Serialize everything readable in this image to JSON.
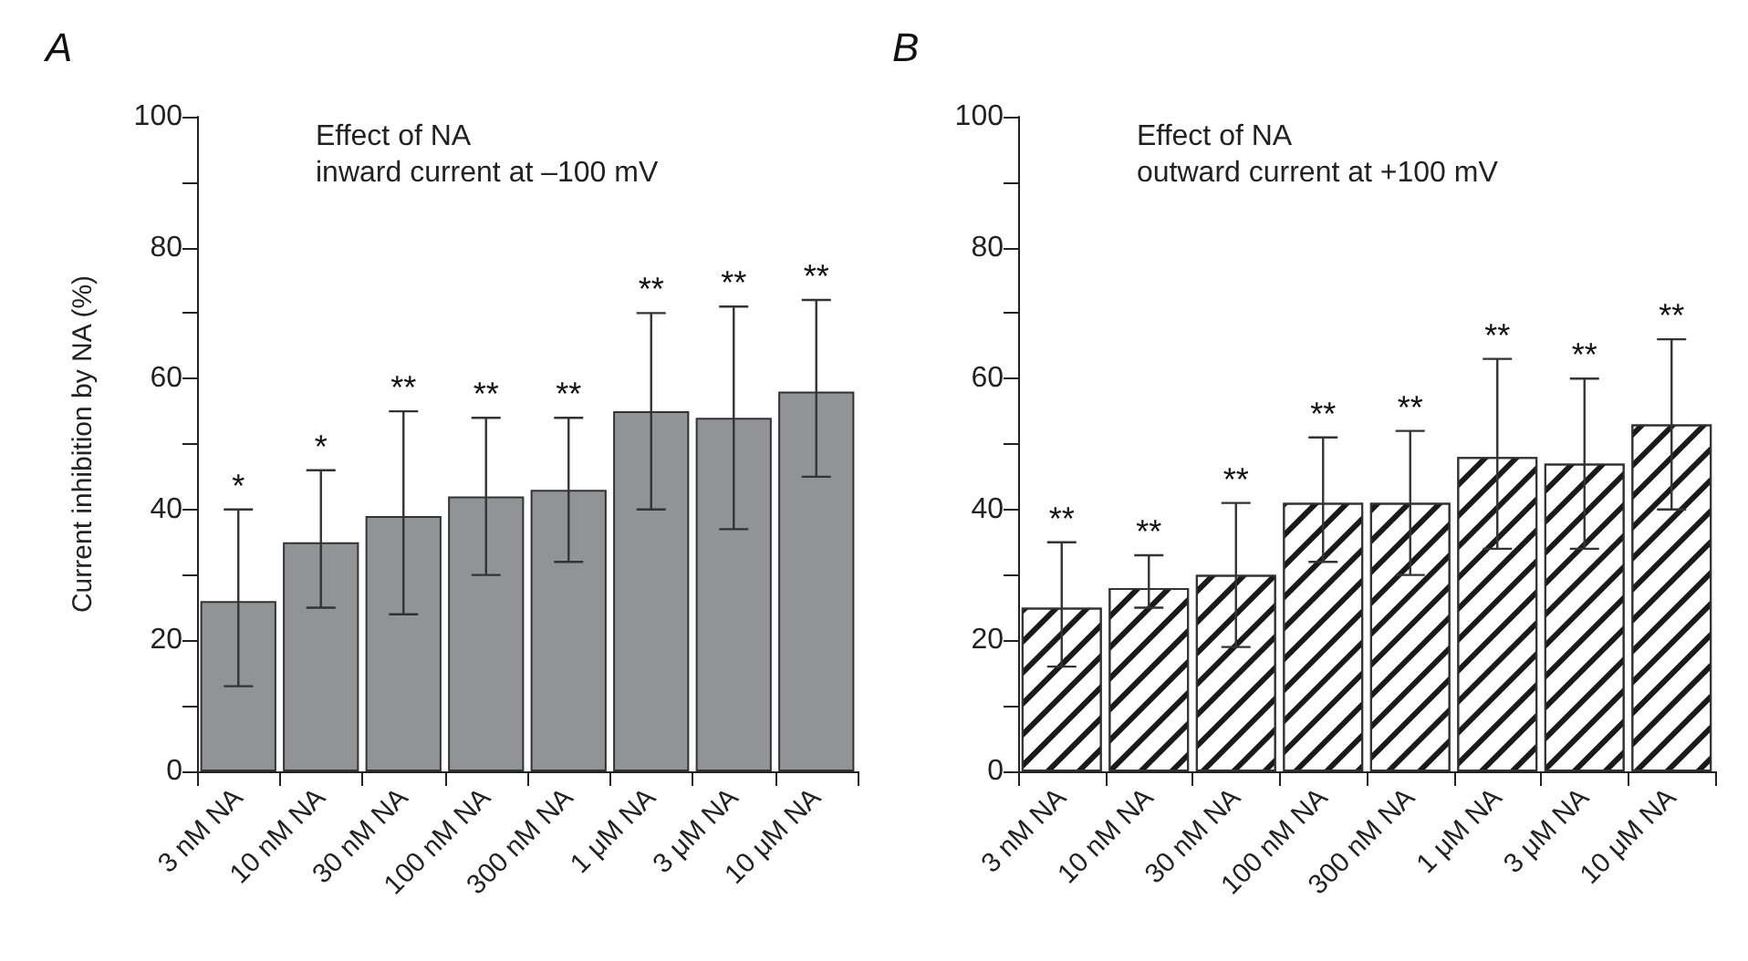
{
  "chart_data": [
    {
      "type": "bar",
      "title": "A",
      "subtitle": "Effect of NA\ninward current at –100 mV",
      "ylabel": "Current inhibition by NA (%)",
      "categories": [
        "3 nM NA",
        "10 nM NA",
        "30 nM NA",
        "100 nM NA",
        "300 nM NA",
        "1 μM NA",
        "3 μM NA",
        "10 μM NA"
      ],
      "values": [
        26,
        35,
        39,
        42,
        43,
        55,
        54,
        58
      ],
      "color": "#929396",
      "errors": [
        [
          13,
          40
        ],
        [
          25,
          46
        ],
        [
          24,
          55
        ],
        [
          30,
          54
        ],
        [
          32,
          54
        ],
        [
          40,
          70
        ],
        [
          37,
          71
        ],
        [
          45,
          72
        ]
      ],
      "ylim": [
        0,
        100
      ],
      "yticks": [
        0,
        {
          "value": 10,
          "label": null
        },
        20,
        {
          "value": 30,
          "label": null
        },
        40,
        {
          "value": 50,
          "label": null
        },
        60,
        {
          "value": 70,
          "label": null
        },
        80,
        {
          "value": 90,
          "label": null
        },
        100
      ],
      "annotations": [
        {
          "text": "*",
          "x": "3 nM NA",
          "y": 40
        },
        {
          "text": "*",
          "x": "10 nM NA",
          "y": 46
        },
        {
          "text": "**",
          "x": "30 nM NA",
          "y": 55
        },
        {
          "text": "**",
          "x": "100 nM NA",
          "y": 54
        },
        {
          "text": "**",
          "x": "300 nM NA",
          "y": 54
        },
        {
          "text": "**",
          "x": "1 μM NA",
          "y": 70
        },
        {
          "text": "**",
          "x": "3 μM NA",
          "y": 71
        },
        {
          "text": "**",
          "x": "10 μM NA",
          "y": 72
        }
      ]
    },
    {
      "type": "bar",
      "title": "B",
      "subtitle": "Effect of NA\noutward current at +100 mV",
      "categories": [
        "3 nM NA",
        "10 nM NA",
        "30 nM NA",
        "100 nM NA",
        "300 nM NA",
        "1 μM NA",
        "3 μM NA",
        "10 μM NA"
      ],
      "values": [
        25,
        28,
        30,
        41,
        41,
        48,
        47,
        53
      ],
      "color": "#ffffff",
      "errors": [
        [
          16,
          35
        ],
        [
          25,
          33
        ],
        [
          19,
          41
        ],
        [
          32,
          51
        ],
        [
          30,
          52
        ],
        [
          34,
          63
        ],
        [
          34,
          60
        ],
        [
          40,
          66
        ]
      ],
      "ylim": [
        0,
        100
      ],
      "yticks": [
        0,
        {
          "value": 10,
          "label": null
        },
        20,
        {
          "value": 30,
          "label": null
        },
        40,
        {
          "value": 50,
          "label": null
        },
        60,
        {
          "value": 70,
          "label": null
        },
        80,
        {
          "value": 90,
          "label": null
        },
        100
      ],
      "annotations": [
        {
          "text": "**",
          "x": "3 nM NA",
          "y": 35
        },
        {
          "text": "**",
          "x": "10 nM NA",
          "y": 33
        },
        {
          "text": "**",
          "x": "30 nM NA",
          "y": 41
        },
        {
          "text": "**",
          "x": "100 nM NA",
          "y": 51
        },
        {
          "text": "**",
          "x": "300 nM NA",
          "y": 52
        },
        {
          "text": "**",
          "x": "1 μM NA",
          "y": 63
        },
        {
          "text": "**",
          "x": "3 μM NA",
          "y": 60
        },
        {
          "text": "**",
          "x": "10 μM NA",
          "y": 66
        }
      ]
    }
  ]
}
